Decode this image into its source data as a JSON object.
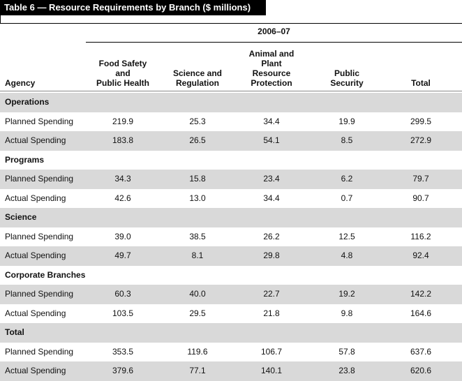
{
  "title": "Table 6 — Resource Requirements by Branch ($ millions)",
  "table": {
    "period": "2006–07",
    "columns": [
      [
        "Agency"
      ],
      [
        "Food Safety",
        "and",
        "Public Health"
      ],
      [
        "Science and",
        "Regulation"
      ],
      [
        "Animal and",
        "Plant",
        "Resource",
        "Protection"
      ],
      [
        "Public",
        "Security"
      ],
      [
        "Total"
      ]
    ],
    "rows": [
      [
        "Operations"
      ],
      [
        "Planned Spending",
        "219.9",
        "25.3",
        "34.4",
        "19.9",
        "299.5"
      ],
      [
        "Actual Spending",
        "183.8",
        "26.5",
        "54.1",
        "8.5",
        "272.9"
      ],
      [
        "Programs"
      ],
      [
        "Planned Spending",
        "34.3",
        "15.8",
        "23.4",
        "6.2",
        "79.7"
      ],
      [
        "Actual Spending",
        "42.6",
        "13.0",
        "34.4",
        "0.7",
        "90.7"
      ],
      [
        "Science"
      ],
      [
        "Planned Spending",
        "39.0",
        "38.5",
        "26.2",
        "12.5",
        "116.2"
      ],
      [
        "Actual Spending",
        "49.7",
        "8.1",
        "29.8",
        "4.8",
        "92.4"
      ],
      [
        "Corporate Branches"
      ],
      [
        "Planned Spending",
        "60.3",
        "40.0",
        "22.7",
        "19.2",
        "142.2"
      ],
      [
        "Actual Spending",
        "103.5",
        "29.5",
        "21.8",
        "9.8",
        "164.6"
      ],
      [
        "Total"
      ],
      [
        "Planned Spending",
        "353.5",
        "119.6",
        "106.7",
        "57.8",
        "637.6"
      ],
      [
        "Actual Spending",
        "379.6",
        "77.1",
        "140.1",
        "23.8",
        "620.6"
      ]
    ]
  }
}
